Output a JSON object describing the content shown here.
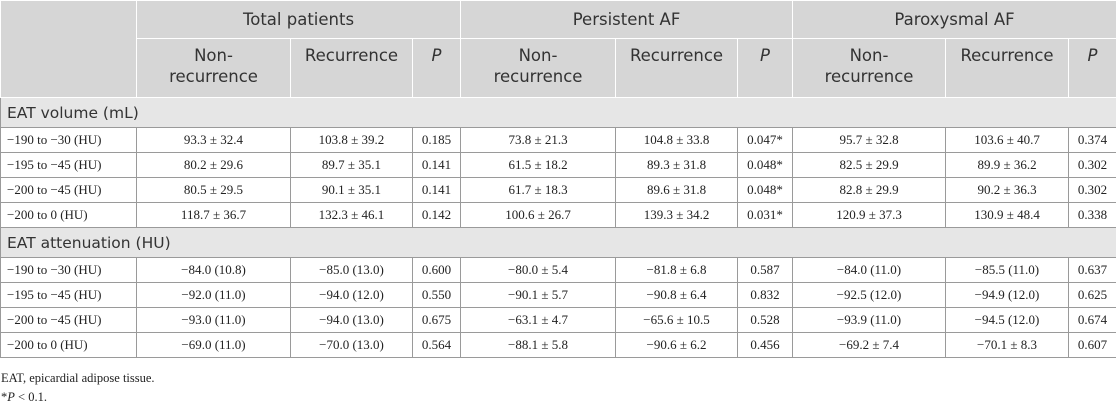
{
  "table": {
    "groups": [
      {
        "title": "Total patients",
        "columns": [
          "Non-recurrence",
          "Recurrence",
          "P"
        ]
      },
      {
        "title": "Persistent AF",
        "columns": [
          "Non-recurrence",
          "Recurrence",
          "P"
        ]
      },
      {
        "title": "Paroxysmal AF",
        "columns": [
          "Non-recurrence",
          "Recurrence",
          "P"
        ]
      }
    ],
    "sections": [
      {
        "title": "EAT volume (mL)",
        "rows": [
          [
            "−190 to −30 (HU)",
            "93.3 ± 32.4",
            "103.8 ± 39.2",
            "0.185",
            "73.8 ± 21.3",
            "104.8 ± 33.8",
            "0.047*",
            "95.7 ± 32.8",
            "103.6 ± 40.7",
            "0.374"
          ],
          [
            "−195 to −45 (HU)",
            "80.2 ± 29.6",
            "89.7 ± 35.1",
            "0.141",
            "61.5 ± 18.2",
            "89.3 ± 31.8",
            "0.048*",
            "82.5 ± 29.9",
            "89.9 ± 36.2",
            "0.302"
          ],
          [
            "−200 to −45 (HU)",
            "80.5 ± 29.5",
            "90.1 ± 35.1",
            "0.141",
            "61.7 ± 18.3",
            "89.6 ± 31.8",
            "0.048*",
            "82.8 ± 29.9",
            "90.2 ± 36.3",
            "0.302"
          ],
          [
            "−200 to 0 (HU)",
            "118.7 ± 36.7",
            "132.3 ± 46.1",
            "0.142",
            "100.6 ± 26.7",
            "139.3 ± 34.2",
            "0.031*",
            "120.9 ± 37.3",
            "130.9 ± 48.4",
            "0.338"
          ]
        ]
      },
      {
        "title": "EAT attenuation (HU)",
        "rows": [
          [
            "−190 to −30 (HU)",
            "−84.0 (10.8)",
            "−85.0 (13.0)",
            "0.600",
            "−80.0 ± 5.4",
            "−81.8 ± 6.8",
            "0.587",
            "−84.0 (11.0)",
            "−85.5 (11.0)",
            "0.637"
          ],
          [
            "−195 to −45 (HU)",
            "−92.0 (11.0)",
            "−94.0 (12.0)",
            "0.550",
            "−90.1 ± 5.7",
            "−90.8 ± 6.4",
            "0.832",
            "−92.5 (12.0)",
            "−94.9 (12.0)",
            "0.625"
          ],
          [
            "−200 to −45 (HU)",
            "−93.0 (11.0)",
            "−94.0 (13.0)",
            "0.675",
            "−63.1 ± 4.7",
            "−65.6 ± 10.5",
            "0.528",
            "−93.9 (11.0)",
            "−94.5 (12.0)",
            "0.674"
          ],
          [
            "−200 to 0 (HU)",
            "−69.0 (11.0)",
            "−70.0 (13.0)",
            "0.564",
            "−88.1 ± 5.8",
            "−90.6 ± 6.2",
            "0.456",
            "−69.2 ± 7.4",
            "−70.1 ± 8.3",
            "0.607"
          ]
        ]
      }
    ]
  },
  "footnotes": {
    "abbreviation": "EAT, epicardial adipose tissue.",
    "significance": {
      "mark": "*",
      "symbol": "P",
      "text": " < 0.1."
    }
  }
}
